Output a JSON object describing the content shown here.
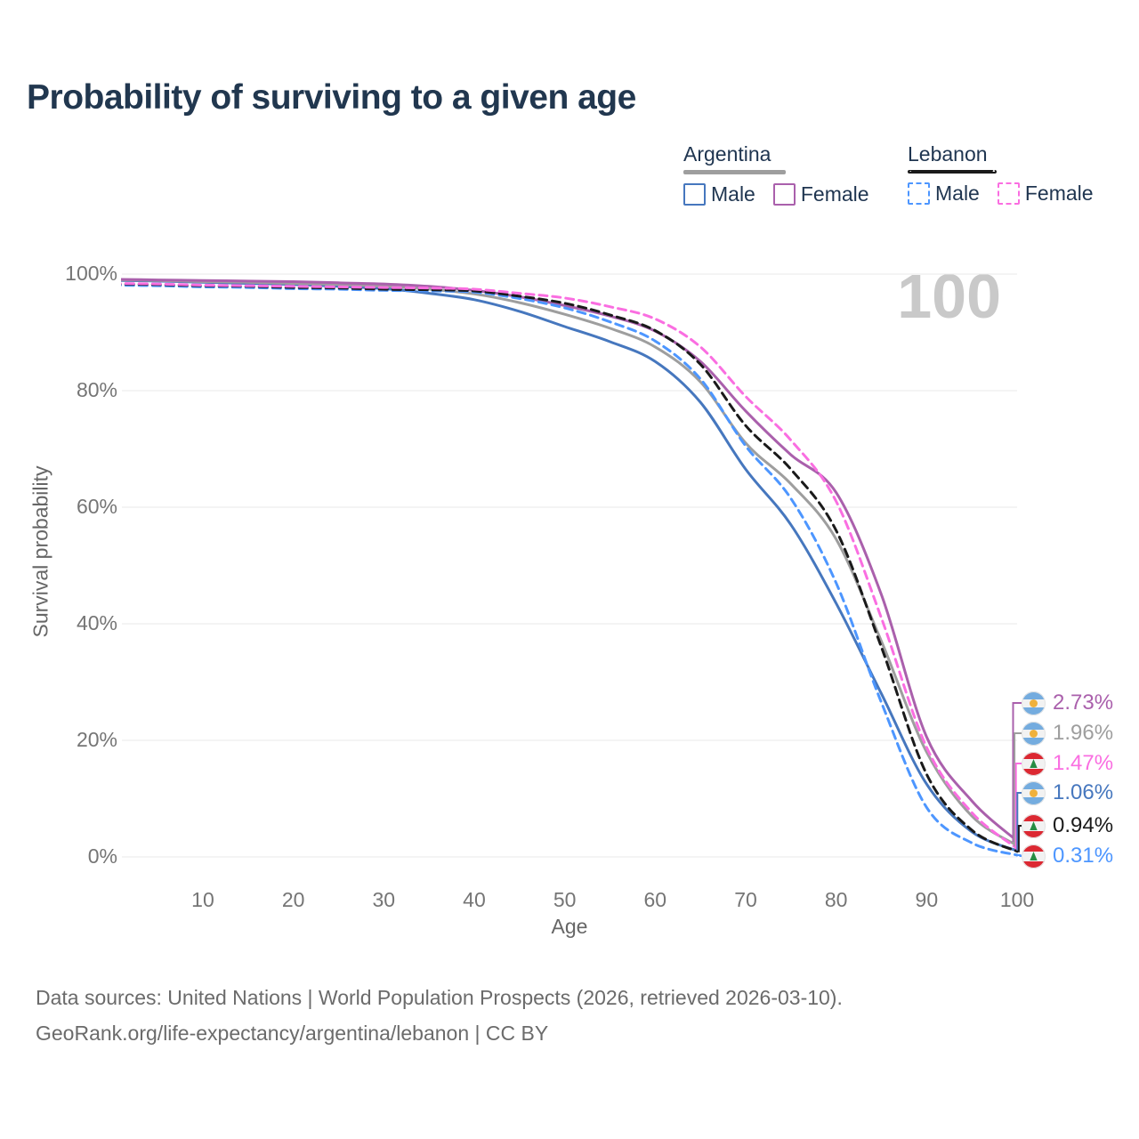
{
  "title": "Probability of surviving to a given age",
  "legend": {
    "argentina": {
      "title": "Argentina",
      "male": "Male",
      "female": "Female"
    },
    "lebanon": {
      "title": "Lebanon",
      "male": "Male",
      "female": "Female"
    }
  },
  "chart_data": {
    "type": "line",
    "title": "Probability of surviving to a given age",
    "xlabel": "Age",
    "ylabel": "Survival probability",
    "xlim": [
      0,
      100
    ],
    "ylim": [
      0,
      100
    ],
    "grid": "horizontal",
    "legend_position": "top-right",
    "watermark": "100",
    "x": [
      0,
      5,
      10,
      15,
      20,
      25,
      30,
      35,
      40,
      45,
      50,
      55,
      60,
      65,
      70,
      75,
      80,
      85,
      90,
      95,
      100
    ],
    "xticks": [
      10,
      20,
      30,
      40,
      50,
      60,
      70,
      80,
      90,
      100
    ],
    "xtick_labels": [
      "10",
      "20",
      "30",
      "40",
      "50",
      "60",
      "70",
      "80",
      "90",
      "100"
    ],
    "yticks": [
      0,
      20,
      40,
      60,
      80,
      100
    ],
    "ytick_labels": [
      "0%",
      "20%",
      "40%",
      "60%",
      "80%",
      "100%"
    ],
    "series": [
      {
        "name": "Argentina Male",
        "country": "Argentina",
        "sex": "Male",
        "line": "solid",
        "color": "#4677BE",
        "end_label": "1.06%",
        "values": [
          98.9,
          98.8,
          98.6,
          98.4,
          98.2,
          97.9,
          97.5,
          96.7,
          95.6,
          93.6,
          91.0,
          88.4,
          85.0,
          78.0,
          66.5,
          57.0,
          43.5,
          28.0,
          12.5,
          4.3,
          1.06
        ]
      },
      {
        "name": "Argentina",
        "country": "Argentina",
        "sex": "All",
        "line": "solid",
        "color": "#9E9E9E",
        "end_label": "1.96%",
        "values": [
          99.0,
          98.9,
          98.7,
          98.6,
          98.4,
          98.2,
          97.9,
          97.4,
          96.6,
          95.1,
          93.1,
          90.7,
          87.5,
          81.5,
          71.0,
          64.0,
          54.5,
          37.0,
          18.0,
          7.0,
          1.96
        ]
      },
      {
        "name": "Argentina Female",
        "country": "Argentina",
        "sex": "Female",
        "line": "solid",
        "color": "#AA60AC",
        "end_label": "2.73%",
        "values": [
          99.1,
          99.0,
          98.9,
          98.8,
          98.7,
          98.5,
          98.3,
          97.9,
          97.2,
          96.1,
          94.6,
          92.8,
          90.2,
          85.0,
          76.5,
          69.0,
          62.5,
          45.0,
          20.6,
          9.6,
          2.73
        ]
      },
      {
        "name": "Lebanon Male",
        "country": "Lebanon",
        "sex": "Male",
        "line": "dashed",
        "color": "#4D96FF",
        "end_label": "0.31%",
        "values": [
          98.1,
          98.0,
          97.8,
          97.7,
          97.5,
          97.4,
          97.2,
          97.1,
          96.9,
          95.8,
          94.2,
          91.8,
          88.5,
          82.0,
          70.5,
          61.5,
          47.0,
          26.5,
          8.5,
          2.4,
          0.31
        ]
      },
      {
        "name": "Lebanon",
        "country": "Lebanon",
        "sex": "All",
        "line": "dashed",
        "color": "#1A1A1A",
        "end_label": "0.94%",
        "values": [
          98.3,
          98.2,
          98.0,
          97.9,
          97.7,
          97.6,
          97.4,
          97.3,
          97.1,
          96.2,
          95.0,
          93.0,
          90.3,
          84.5,
          74.0,
          66.5,
          56.0,
          36.0,
          14.2,
          4.6,
          0.94
        ]
      },
      {
        "name": "Lebanon Female",
        "country": "Lebanon",
        "sex": "Female",
        "line": "dashed",
        "color": "#FA6EE1",
        "end_label": "1.47%",
        "values": [
          98.4,
          98.3,
          98.1,
          98.0,
          97.9,
          97.8,
          97.7,
          97.6,
          97.4,
          96.7,
          95.9,
          94.4,
          92.3,
          87.5,
          79.0,
          71.5,
          61.0,
          41.0,
          18.8,
          7.6,
          1.47
        ]
      }
    ]
  },
  "end_labels": [
    {
      "value": "2.73%",
      "flag": "argentina",
      "color": "#AA60AC",
      "series": "Argentina Female"
    },
    {
      "value": "1.96%",
      "flag": "argentina",
      "color": "#9E9E9E",
      "series": "Argentina"
    },
    {
      "value": "1.47%",
      "flag": "lebanon",
      "color": "#FA6EE1",
      "series": "Lebanon Female"
    },
    {
      "value": "1.06%",
      "flag": "argentina",
      "color": "#4677BE",
      "series": "Argentina Male"
    },
    {
      "value": "0.94%",
      "flag": "lebanon",
      "color": "#1A1A1A",
      "series": "Lebanon"
    },
    {
      "value": "0.31%",
      "flag": "lebanon",
      "color": "#4D96FF",
      "series": "Lebanon Male"
    }
  ],
  "footer": {
    "line1": "Data sources: United Nations | World Population Prospects (2026, retrieved 2026-03-10).",
    "line2": "GeoRank.org/life-expectancy/argentina/lebanon | CC BY"
  }
}
